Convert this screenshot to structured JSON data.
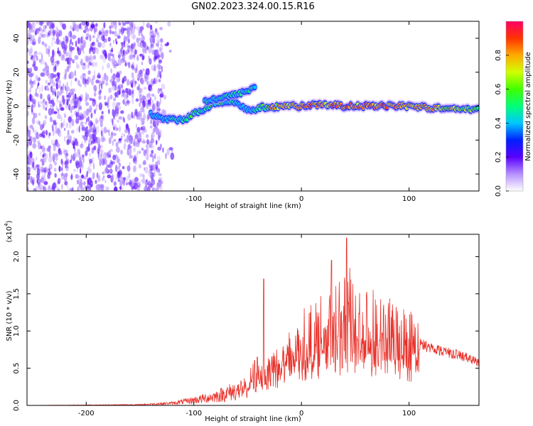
{
  "title": "GN02.2023.324.00.15.R16",
  "colors": {
    "snr_line": "#e8312a",
    "colormap": [
      "#ffffff",
      "#b690ff",
      "#5a00ff",
      "#0020ff",
      "#00c8ff",
      "#00ff7a",
      "#40ff00",
      "#d0ff00",
      "#ffaa00",
      "#ff3300",
      "#ff0066"
    ]
  },
  "chart_data": [
    {
      "type": "heatmap",
      "title": "GN02.2023.324.00.15.R16",
      "xlabel": "Height of straight line (km)",
      "ylabel": "Frequency (Hz)",
      "xlim": [
        -255,
        165
      ],
      "ylim": [
        -50,
        50
      ],
      "xticks": [
        -200,
        -100,
        0,
        100
      ],
      "xtick_labels": [
        "-200",
        "-100",
        "0",
        "100"
      ],
      "yticks": [
        -40,
        -20,
        0,
        20,
        40
      ],
      "ytick_labels": [
        "-40",
        "-20",
        "0",
        "20",
        "40"
      ],
      "colorbar": {
        "label": "Normalized spectral amplitude",
        "range": [
          0,
          1
        ],
        "ticks": [
          0.0,
          0.2,
          0.4,
          0.6,
          0.8
        ],
        "tick_labels": [
          "0.0",
          "0.2",
          "0.4",
          "0.6",
          "0.8"
        ]
      },
      "ridge": {
        "x": [
          -140,
          -125,
          -110,
          -95,
          -80,
          -65,
          -55,
          -48,
          -40,
          -20,
          0,
          20,
          40,
          60,
          80,
          100,
          120,
          140,
          165
        ],
        "freq": [
          -5,
          -8,
          -8,
          -3,
          2,
          3,
          0,
          -3,
          -1,
          0,
          0,
          1,
          0,
          0,
          0,
          0,
          -1,
          -1,
          -2
        ],
        "amplitude": [
          0.35,
          0.45,
          0.5,
          0.55,
          0.55,
          0.5,
          0.4,
          0.4,
          0.6,
          0.8,
          0.85,
          0.8,
          0.85,
          0.9,
          0.85,
          0.8,
          0.75,
          0.7,
          0.6
        ]
      },
      "branch": {
        "x": [
          -90,
          -75,
          -60,
          -50,
          -42
        ],
        "freq": [
          3,
          5,
          7,
          9,
          12
        ]
      },
      "noise_region_x": [
        -255,
        -130
      ]
    },
    {
      "type": "line",
      "xlabel": "Height of straight line (km)",
      "ylabel": "SNR (10 * v/v)",
      "scale_label": "(x10",
      "scale_exponent": "4",
      "xlim": [
        -255,
        165
      ],
      "ylim": [
        0,
        2.3
      ],
      "xticks": [
        -200,
        -100,
        0,
        100
      ],
      "xtick_labels": [
        "-200",
        "-100",
        "0",
        "100"
      ],
      "yticks": [
        0.0,
        0.5,
        1.0,
        1.5,
        2.0
      ],
      "ytick_labels": [
        "0.0",
        "0.5",
        "1.0",
        "1.5",
        "2.0"
      ],
      "series": [
        {
          "envelope_x": [
            -255,
            -200,
            -150,
            -120,
            -100,
            -80,
            -60,
            -50,
            -40,
            -30,
            -20,
            -10,
            0,
            10,
            20,
            30,
            40,
            50,
            60,
            70,
            80,
            90,
            100,
            110,
            120,
            130,
            140,
            150,
            165
          ],
          "envelope_y": [
            0.0,
            0.005,
            0.01,
            0.03,
            0.07,
            0.12,
            0.2,
            0.28,
            0.5,
            0.55,
            0.62,
            0.72,
            0.85,
            0.95,
            1.05,
            1.12,
            1.15,
            1.12,
            1.08,
            1.02,
            0.98,
            0.93,
            0.88,
            0.82,
            0.78,
            0.74,
            0.7,
            0.66,
            0.58
          ],
          "peaks_x": [
            -35,
            28,
            42,
            45
          ],
          "peaks_y": [
            1.7,
            1.95,
            2.25,
            1.85
          ]
        }
      ]
    }
  ]
}
